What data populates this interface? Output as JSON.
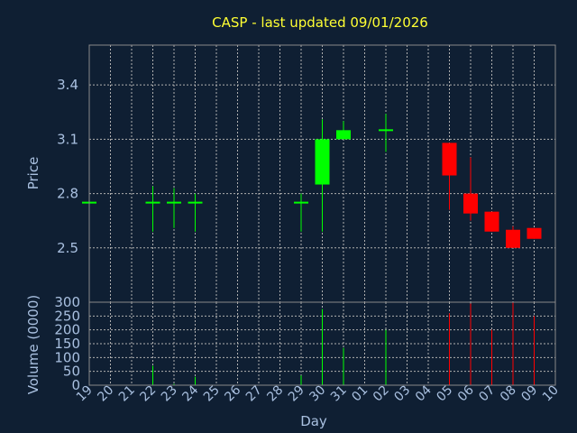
{
  "chart_data": {
    "type": "candlestick",
    "title": "CASP - last updated 09/01/2026",
    "xlabel": "Day",
    "ylabel_price": "Price",
    "ylabel_volume": "Volume (0000)",
    "price_ticks": [
      "2.5",
      "2.8",
      "3.1",
      "3.4"
    ],
    "volume_ticks": [
      "0",
      "50",
      "100",
      "150",
      "200",
      "250",
      "300"
    ],
    "price_ylim": [
      2.2,
      3.62
    ],
    "volume_ylim": [
      0,
      300
    ],
    "grid": true,
    "days": [
      "19",
      "20",
      "21",
      "22",
      "23",
      "24",
      "25",
      "26",
      "27",
      "28",
      "29",
      "30",
      "31",
      "01",
      "02",
      "03",
      "04",
      "05",
      "06",
      "07",
      "08",
      "09",
      "10"
    ],
    "candles": [
      {
        "day": "19",
        "open": 2.75,
        "high": 2.75,
        "low": 2.75,
        "close": 2.75,
        "volume": 0,
        "color": "#00ff00"
      },
      {
        "day": "22",
        "open": 2.75,
        "high": 2.84,
        "low": 2.59,
        "close": 2.75,
        "volume": 70,
        "color": "#00ff00"
      },
      {
        "day": "23",
        "open": 2.75,
        "high": 2.83,
        "low": 2.61,
        "close": 2.75,
        "volume": 5,
        "color": "#00ff00"
      },
      {
        "day": "24",
        "open": 2.75,
        "high": 2.8,
        "low": 2.59,
        "close": 2.75,
        "volume": 30,
        "color": "#00ff00"
      },
      {
        "day": "29",
        "open": 2.75,
        "high": 2.8,
        "low": 2.59,
        "close": 2.75,
        "volume": 35,
        "color": "#00ff00"
      },
      {
        "day": "30",
        "open": 2.85,
        "high": 3.21,
        "low": 2.59,
        "close": 3.1,
        "volume": 275,
        "color": "#00ff00"
      },
      {
        "day": "31",
        "open": 3.1,
        "high": 3.2,
        "low": 3.1,
        "close": 3.15,
        "volume": 135,
        "color": "#00ff00"
      },
      {
        "day": "02",
        "open": 3.15,
        "high": 3.24,
        "low": 3.03,
        "close": 3.15,
        "volume": 200,
        "color": "#00ff00"
      },
      {
        "day": "05",
        "open": 3.08,
        "high": 3.08,
        "low": 2.71,
        "close": 2.9,
        "volume": 260,
        "color": "#ff0000"
      },
      {
        "day": "06",
        "open": 2.8,
        "high": 3.0,
        "low": 2.65,
        "close": 2.69,
        "volume": 295,
        "color": "#ff0000"
      },
      {
        "day": "07",
        "open": 2.7,
        "high": 2.7,
        "low": 2.59,
        "close": 2.59,
        "volume": 200,
        "color": "#ff0000"
      },
      {
        "day": "08",
        "open": 2.6,
        "high": 2.62,
        "low": 2.5,
        "close": 2.5,
        "volume": 300,
        "color": "#ff0000"
      },
      {
        "day": "09",
        "open": 2.61,
        "high": 2.61,
        "low": 2.55,
        "close": 2.55,
        "volume": 250,
        "color": "#ff0000"
      }
    ]
  }
}
